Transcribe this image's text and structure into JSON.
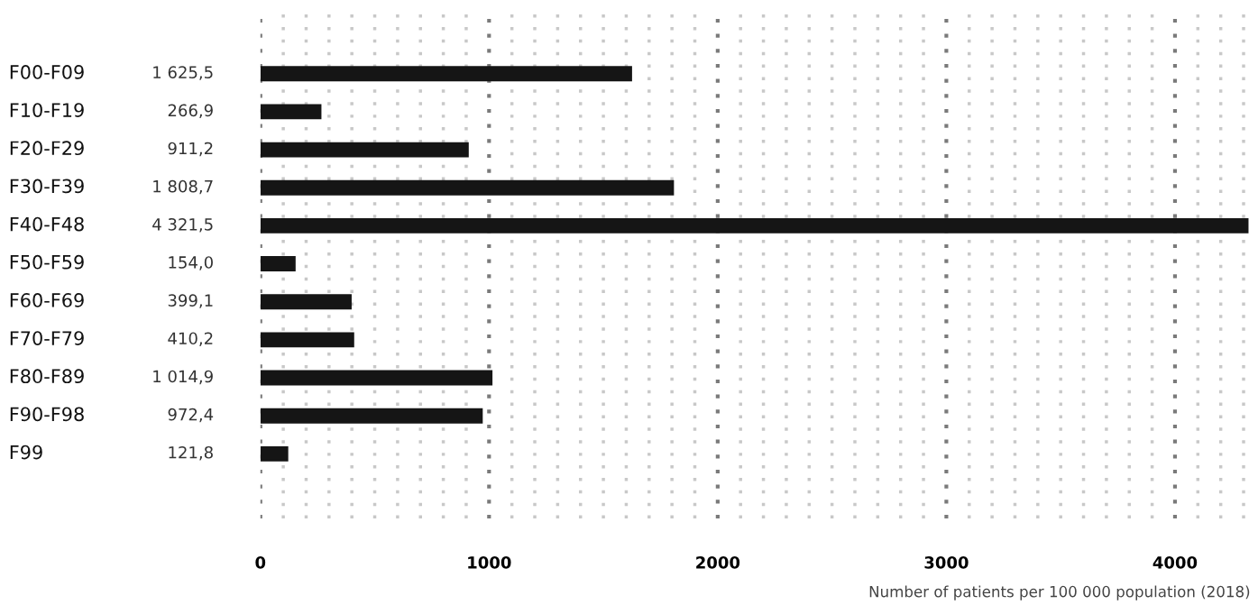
{
  "chart_data": {
    "type": "bar",
    "orientation": "horizontal",
    "categories": [
      "F00-F09",
      "F10-F19",
      "F20-F29",
      "F30-F39",
      "F40-F48",
      "F50-F59",
      "F60-F69",
      "F70-F79",
      "F80-F89",
      "F90-F98",
      "F99"
    ],
    "values": [
      1625.5,
      266.9,
      911.2,
      1808.7,
      4321.5,
      154.0,
      399.1,
      410.2,
      1014.9,
      972.4,
      121.8
    ],
    "value_labels": [
      "1 625,5",
      "266,9",
      "911,2",
      "1 808,7",
      "4 321,5",
      "154,0",
      "399,1",
      "410,2",
      "1 014,9",
      "972,4",
      "121,8"
    ],
    "color": "#151515",
    "xlabel": "Number of patients per 100 000 population (2018)",
    "xlim": [
      0,
      4330
    ],
    "xticks": [
      0,
      {
        "value": 100,
        "label": null
      },
      {
        "value": 200,
        "label": null
      },
      {
        "value": 300,
        "label": null
      },
      {
        "value": 400,
        "label": null
      },
      {
        "value": 500,
        "label": null
      },
      {
        "value": 600,
        "label": null
      },
      {
        "value": 700,
        "label": null
      },
      {
        "value": 800,
        "label": null
      },
      {
        "value": 900,
        "label": null
      },
      1000,
      {
        "value": 1100,
        "label": null
      },
      {
        "value": 1200,
        "label": null
      },
      {
        "value": 1300,
        "label": null
      },
      {
        "value": 1400,
        "label": null
      },
      {
        "value": 1500,
        "label": null
      },
      {
        "value": 1600,
        "label": null
      },
      {
        "value": 1700,
        "label": null
      },
      {
        "value": 1800,
        "label": null
      },
      {
        "value": 1900,
        "label": null
      },
      2000,
      {
        "value": 2100,
        "label": null
      },
      {
        "value": 2200,
        "label": null
      },
      {
        "value": 2300,
        "label": null
      },
      {
        "value": 2400,
        "label": null
      },
      {
        "value": 2500,
        "label": null
      },
      {
        "value": 2600,
        "label": null
      },
      {
        "value": 2700,
        "label": null
      },
      {
        "value": 2800,
        "label": null
      },
      {
        "value": 2900,
        "label": null
      },
      3000,
      {
        "value": 3100,
        "label": null
      },
      {
        "value": 3200,
        "label": null
      },
      {
        "value": 3300,
        "label": null
      },
      {
        "value": 3400,
        "label": null
      },
      {
        "value": 3500,
        "label": null
      },
      {
        "value": 3600,
        "label": null
      },
      {
        "value": 3700,
        "label": null
      },
      {
        "value": 3800,
        "label": null
      },
      {
        "value": 3900,
        "label": null
      },
      4000,
      {
        "value": 4100,
        "label": null
      },
      {
        "value": 4200,
        "label": null
      },
      {
        "value": 4300,
        "label": null
      }
    ],
    "grid": "x"
  }
}
